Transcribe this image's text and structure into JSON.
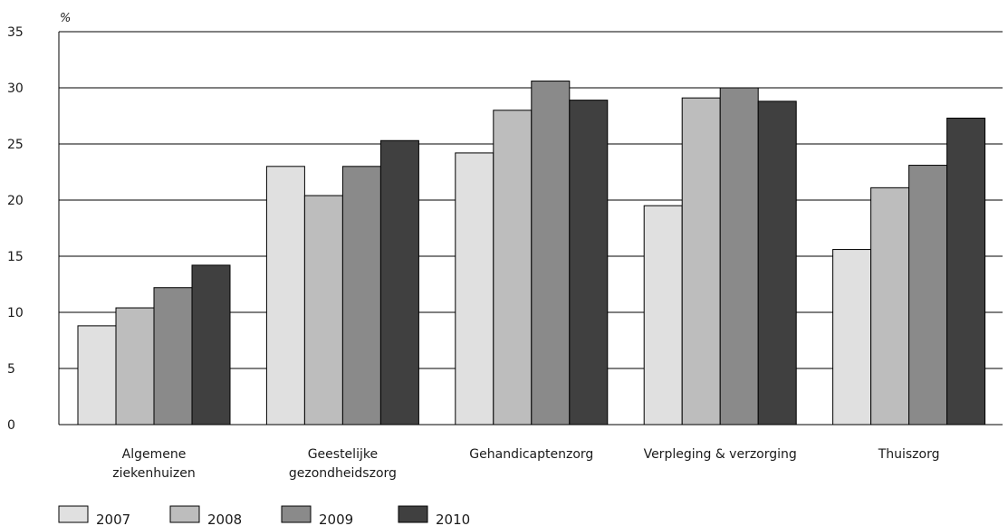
{
  "chart_data": {
    "type": "bar",
    "ylabel": "%",
    "ylim": [
      0,
      35
    ],
    "yticks": [
      0,
      5,
      10,
      15,
      20,
      25,
      30,
      35
    ],
    "grid": true,
    "legend_position": "bottom-left",
    "categories": [
      [
        "Algemene",
        "ziekenhuizen"
      ],
      [
        "Geestelijke",
        "gezondheidszorg"
      ],
      [
        "Gehandicaptenzorg"
      ],
      [
        "Verpleging & verzorging"
      ],
      [
        "Thuiszorg"
      ]
    ],
    "series": [
      {
        "name": "2007",
        "color": "#e0e0e0",
        "values": [
          8.8,
          23.0,
          24.2,
          19.5,
          15.6
        ]
      },
      {
        "name": "2008",
        "color": "#bdbdbd",
        "values": [
          10.4,
          20.4,
          28.0,
          29.1,
          21.1
        ]
      },
      {
        "name": "2009",
        "color": "#8a8a8a",
        "values": [
          12.2,
          23.0,
          30.6,
          30.0,
          23.1
        ]
      },
      {
        "name": "2010",
        "color": "#404040",
        "values": [
          14.2,
          25.3,
          28.9,
          28.8,
          27.3
        ]
      }
    ]
  }
}
